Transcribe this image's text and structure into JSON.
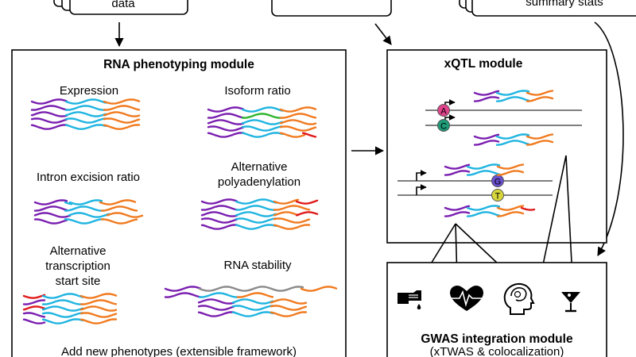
{
  "colors": {
    "purple": "#7a1fb0",
    "cyan": "#1fb4e0",
    "orange": "#f07a1f",
    "green": "#2db52d",
    "red": "#e01a1a",
    "gray": "#8a8a8a",
    "allele_a": "#e0438a",
    "allele_c": "#1f9a78",
    "allele_g": "#6a4fd0",
    "allele_t": "#d6d63a"
  },
  "inputs": {
    "left_label": "data",
    "right_label": "summary stats"
  },
  "rna_module": {
    "title": "RNA phenotyping module",
    "panels": {
      "expression": "Expression",
      "isoform_ratio": "Isoform ratio",
      "intron_excision": "Intron excision ratio",
      "apa_line1": "Alternative",
      "apa_line2": "polyadenylation",
      "atss_line1": "Alternative",
      "atss_line2": "transcription",
      "atss_line3": "start site",
      "stability": "RNA stability"
    },
    "footer": "Add new phenotypes (extensible framework)"
  },
  "xqtl_module": {
    "title": "xQTL module",
    "alleles": [
      "A",
      "C",
      "G",
      "T"
    ]
  },
  "gwas_module": {
    "title": "GWAS integration module",
    "subtitle": "(xTWAS & colocalization)",
    "icons": [
      "blood-test-icon",
      "heart-rate-icon",
      "brain-head-icon",
      "cocktail-glass-icon"
    ]
  }
}
